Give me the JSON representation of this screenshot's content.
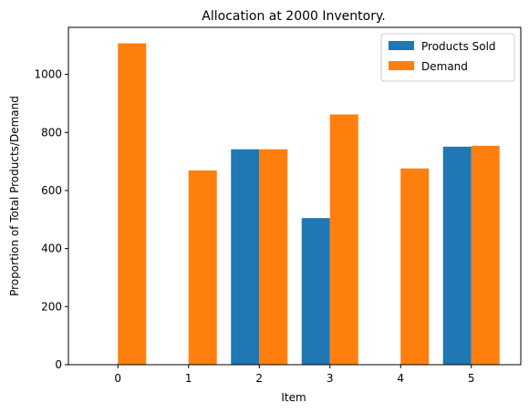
{
  "chart_data": {
    "type": "bar",
    "title": "Allocation at 2000 Inventory.",
    "xlabel": "Item",
    "ylabel": "Proportion of Total Products/Demand",
    "categories": [
      "0",
      "1",
      "2",
      "3",
      "4",
      "5"
    ],
    "series": [
      {
        "name": "Products Sold",
        "color": "#1f77b4",
        "values": [
          0,
          0,
          742,
          505,
          0,
          751
        ]
      },
      {
        "name": "Demand",
        "color": "#ff7f0e",
        "values": [
          1107,
          669,
          742,
          862,
          676,
          754
        ]
      }
    ],
    "ylim": [
      0,
      1162
    ],
    "yticks": [
      0,
      200,
      400,
      600,
      800,
      1000
    ],
    "grid": false,
    "legend": "top-right"
  }
}
